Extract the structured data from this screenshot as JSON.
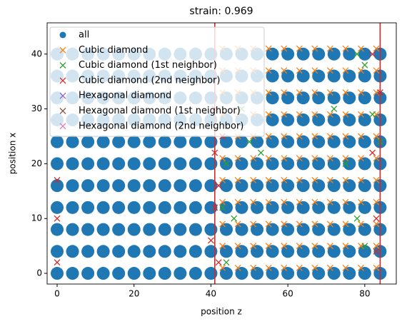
{
  "chart_data": {
    "type": "scatter",
    "title": "strain: 0.969",
    "x_label": "position z",
    "y_label": "position x",
    "xlim": [
      -2.6,
      88.2
    ],
    "ylim": [
      -1.95,
      45.7
    ],
    "xticks": [
      0,
      20,
      40,
      60,
      80
    ],
    "yticks": [
      0,
      10,
      20,
      30,
      40
    ],
    "legend": "upper left",
    "vlines": [
      41,
      84
    ],
    "vline_color": "#d62728",
    "series": [
      {
        "name": "all",
        "color": "#1f77b4",
        "marker": "o",
        "x": [
          0,
          4,
          8,
          12,
          16,
          20,
          24,
          28,
          32,
          36,
          40,
          44,
          48,
          52,
          56,
          60,
          64,
          68,
          72,
          76,
          80,
          84,
          0,
          4,
          8,
          12,
          16,
          20,
          24,
          28,
          32,
          36,
          40,
          44,
          48,
          52,
          56,
          60,
          64,
          68,
          72,
          76,
          80,
          84,
          0,
          4,
          8,
          12,
          16,
          20,
          24,
          28,
          32,
          36,
          40,
          44,
          48,
          52,
          56,
          60,
          64,
          68,
          72,
          76,
          80,
          84,
          0,
          4,
          8,
          12,
          16,
          20,
          24,
          28,
          32,
          36,
          40,
          44,
          48,
          52,
          56,
          60,
          64,
          68,
          72,
          76,
          80,
          84,
          0,
          4,
          8,
          12,
          16,
          20,
          24,
          28,
          32,
          36,
          40,
          44,
          48,
          52,
          56,
          60,
          64,
          68,
          72,
          76,
          80,
          84,
          0,
          4,
          8,
          12,
          16,
          20,
          24,
          28,
          32,
          36,
          40,
          44,
          48,
          52,
          56,
          60,
          64,
          68,
          72,
          76,
          80,
          84,
          0,
          4,
          8,
          12,
          16,
          20,
          24,
          28,
          32,
          36,
          40,
          44,
          48,
          52,
          56,
          60,
          64,
          68,
          72,
          76,
          80,
          84,
          0,
          4,
          8,
          12,
          16,
          20,
          24,
          28,
          32,
          36,
          40,
          44,
          48,
          52,
          56,
          60,
          64,
          68,
          72,
          76,
          80,
          84,
          0,
          4,
          8,
          12,
          16,
          20,
          24,
          28,
          32,
          36,
          40,
          44,
          48,
          52,
          56,
          60,
          64,
          68,
          72,
          76,
          80,
          84,
          0,
          4,
          8,
          12,
          16,
          20,
          24,
          28,
          32,
          36,
          40,
          44,
          48,
          52,
          56,
          60,
          64,
          68,
          72,
          76,
          80,
          84,
          0,
          4,
          8,
          12,
          16,
          20,
          24,
          28,
          32,
          36,
          40,
          44,
          48,
          52,
          56,
          60,
          64,
          68,
          72,
          76,
          80,
          84
        ],
        "values": [
          0,
          0,
          0,
          0,
          0,
          0,
          0,
          0,
          0,
          0,
          0,
          0,
          0,
          0,
          0,
          0,
          0,
          0,
          0,
          0,
          0,
          0,
          4,
          4,
          4,
          4,
          4,
          4,
          4,
          4,
          4,
          4,
          4,
          4,
          4,
          4,
          4,
          4,
          4,
          4,
          4,
          4,
          4,
          4,
          8,
          8,
          8,
          8,
          8,
          8,
          8,
          8,
          8,
          8,
          8,
          8,
          8,
          8,
          8,
          8,
          8,
          8,
          8,
          8,
          8,
          8,
          12,
          12,
          12,
          12,
          12,
          12,
          12,
          12,
          12,
          12,
          12,
          12,
          12,
          12,
          12,
          12,
          12,
          12,
          12,
          12,
          12,
          12,
          16,
          16,
          16,
          16,
          16,
          16,
          16,
          16,
          16,
          16,
          16,
          16,
          16,
          16,
          16,
          16,
          16,
          16,
          16,
          16,
          16,
          16,
          20,
          20,
          20,
          20,
          20,
          20,
          20,
          20,
          20,
          20,
          20,
          20,
          20,
          20,
          20,
          20,
          20,
          20,
          20,
          20,
          20,
          20,
          24,
          24,
          24,
          24,
          24,
          24,
          24,
          24,
          24,
          24,
          24,
          24,
          24,
          24,
          24,
          24,
          24,
          24,
          24,
          24,
          24,
          24,
          28,
          28,
          28,
          28,
          28,
          28,
          28,
          28,
          28,
          28,
          28,
          28,
          28,
          28,
          28,
          28,
          28,
          28,
          28,
          28,
          28,
          28,
          32,
          32,
          32,
          32,
          32,
          32,
          32,
          32,
          32,
          32,
          32,
          32,
          32,
          32,
          32,
          32,
          32,
          32,
          32,
          32,
          32,
          32,
          36,
          36,
          36,
          36,
          36,
          36,
          36,
          36,
          36,
          36,
          36,
          36,
          36,
          36,
          36,
          36,
          36,
          36,
          36,
          36,
          36,
          36,
          40,
          40,
          40,
          40,
          40,
          40,
          40,
          40,
          40,
          40,
          40,
          40,
          40,
          40,
          40,
          40,
          40,
          40,
          40,
          40,
          40,
          40
        ]
      },
      {
        "name": "Cubic diamond",
        "color": "#ff7f0e",
        "marker": "x",
        "x": [
          43,
          47,
          51,
          55,
          59,
          63,
          67,
          71,
          75,
          79,
          83,
          43,
          47,
          51,
          55,
          59,
          63,
          67,
          71,
          75,
          79,
          83,
          43,
          47,
          51,
          55,
          59,
          63,
          67,
          71,
          75,
          79,
          83,
          43,
          47,
          51,
          55,
          59,
          63,
          67,
          71,
          75,
          79,
          83,
          43,
          47,
          51,
          55,
          59,
          63,
          67,
          71,
          75,
          79,
          83,
          43,
          47,
          51,
          55,
          59,
          63,
          67,
          71,
          75,
          79,
          83,
          43,
          47,
          51,
          55,
          59,
          63,
          67,
          71,
          75,
          79,
          83,
          43,
          47,
          51,
          55,
          59,
          63,
          67,
          71,
          75,
          79,
          83,
          43,
          47,
          51,
          55,
          59,
          63,
          67,
          71,
          75,
          79,
          83,
          43,
          47,
          51,
          55,
          59,
          63,
          67,
          71,
          75,
          79,
          83,
          43,
          47,
          51,
          55,
          59,
          63,
          67,
          71,
          75,
          79,
          83
        ],
        "values": [
          1,
          1,
          1,
          1,
          1,
          1,
          1,
          1,
          1,
          1,
          1,
          5,
          5,
          5,
          5,
          5,
          5,
          5,
          5,
          5,
          5,
          5,
          9,
          9,
          9,
          9,
          9,
          9,
          9,
          9,
          9,
          9,
          9,
          13,
          13,
          13,
          13,
          13,
          13,
          13,
          13,
          13,
          13,
          13,
          17,
          17,
          17,
          17,
          17,
          17,
          17,
          17,
          17,
          17,
          17,
          21,
          21,
          21,
          21,
          21,
          21,
          21,
          21,
          21,
          21,
          21,
          25,
          25,
          25,
          25,
          25,
          25,
          25,
          25,
          25,
          25,
          25,
          29,
          29,
          29,
          29,
          29,
          29,
          29,
          29,
          29,
          29,
          29,
          33,
          33,
          33,
          33,
          33,
          33,
          33,
          33,
          33,
          33,
          33,
          37,
          37,
          37,
          37,
          37,
          37,
          37,
          37,
          37,
          37,
          37,
          41,
          41,
          41,
          41,
          41,
          41,
          41,
          41,
          41,
          41,
          41
        ]
      },
      {
        "name": "Cubic diamond (1st neighbor)",
        "color": "#2ca02c",
        "marker": "x",
        "x": [
          44,
          46,
          44,
          50,
          53,
          48,
          75,
          78,
          80,
          82,
          78,
          80,
          43,
          72,
          84
        ],
        "values": [
          2,
          10,
          20,
          24,
          22,
          30,
          20,
          40,
          38,
          29,
          10,
          5,
          12,
          30,
          24
        ]
      },
      {
        "name": "Cubic diamond (2nd neighbor)",
        "color": "#d62728",
        "marker": "x",
        "x": [
          41,
          40,
          42,
          41,
          43,
          42,
          0,
          0,
          0,
          83,
          82,
          84,
          83,
          82,
          41
        ],
        "values": [
          12,
          6,
          2,
          22,
          25,
          16,
          10,
          17,
          2,
          10,
          40,
          33,
          4,
          22,
          30
        ]
      },
      {
        "name": "Hexagonal diamond",
        "color": "#9467bd",
        "marker": "x",
        "x": [],
        "values": []
      },
      {
        "name": "Hexagonal diamond (1st neighbor)",
        "color": "#8c564b",
        "marker": "x",
        "x": [],
        "values": []
      },
      {
        "name": "Hexagonal diamond (2nd neighbor)",
        "color": "#e377c2",
        "marker": "x",
        "x": [],
        "values": []
      }
    ]
  }
}
